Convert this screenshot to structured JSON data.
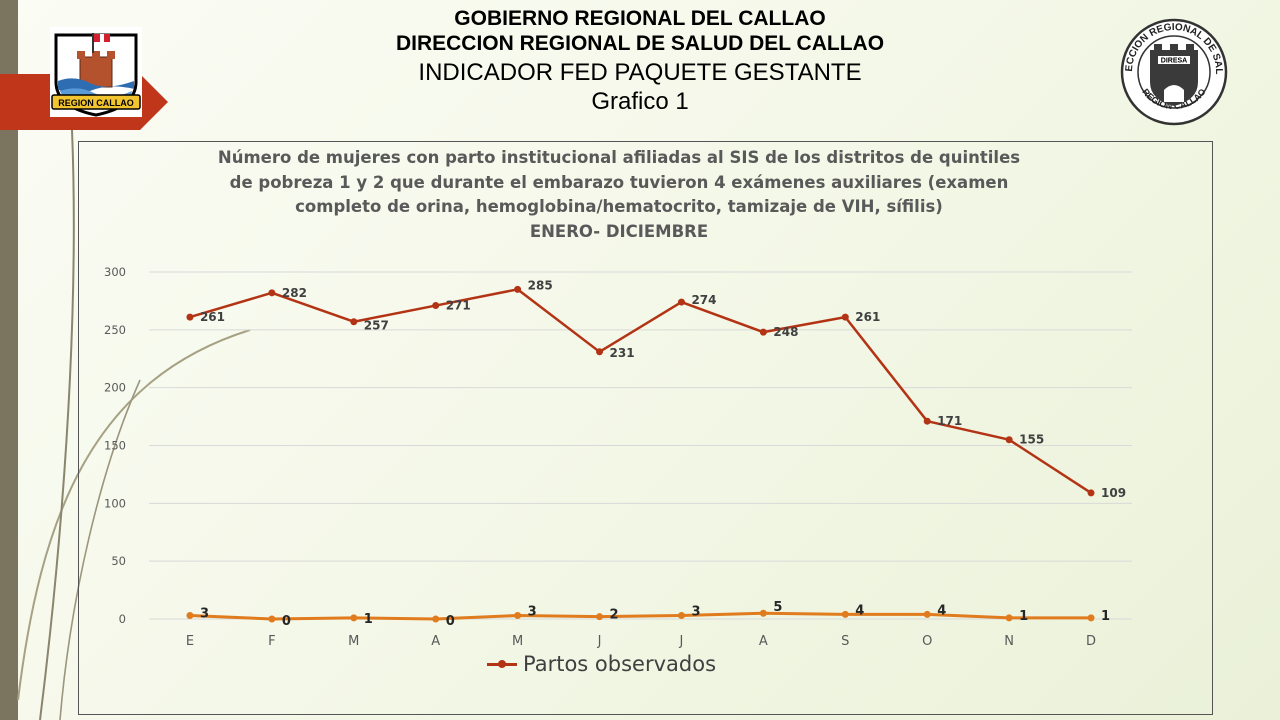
{
  "header": {
    "line1": "GOBIERNO REGIONAL DEL CALLAO",
    "line2": "DIRECCION  REGIONAL DE SALUD  DEL CALLAO",
    "line3": "INDICADOR FED PAQUETE GESTANTE",
    "line4": "Grafico 1"
  },
  "logos": {
    "left_text": "REGION CALLAO",
    "right_text_top": "DIRECCION REGIONAL DE SALUD",
    "right_text_bottom": "REGION CALLAO",
    "right_text_center": "DIRESA"
  },
  "colors": {
    "series_main": "#b33415",
    "series_secondary": "#e07b1e",
    "gridline": "#d9d9d9",
    "accent_bar": "#7b7560",
    "arrow_red": "#c0361b"
  },
  "chart_data": {
    "type": "line",
    "title": "Número de mujeres con parto institucional afiliadas al SIS de los distritos de quintiles de pobreza 1 y 2 que durante el embarazo tuvieron 4 exámenes auxiliares (examen completo de orina, hemoglobina/hematocrito,  tamizaje de VIH, sífilis)",
    "title_lines": [
      "Número de mujeres con parto institucional afiliadas al SIS de los distritos de quintiles",
      "de pobreza 1 y 2 que durante el embarazo tuvieron 4 exámenes auxiliares (examen",
      "completo de orina, hemoglobina/hematocrito,  tamizaje de VIH, sífilis)"
    ],
    "subtitle": "ENERO- DICIEMBRE",
    "categories": [
      "E",
      "F",
      "M",
      "A",
      "M",
      "J",
      "J",
      "A",
      "S",
      "O",
      "N",
      "D"
    ],
    "ylim": [
      0,
      300
    ],
    "yticks": [
      "0",
      "50",
      "100",
      "150",
      "200",
      "250",
      "300"
    ],
    "grid": true,
    "legend_position": "bottom",
    "series": [
      {
        "values": [
          261,
          282,
          257,
          271,
          285,
          231,
          274,
          248,
          261,
          171,
          155,
          109
        ],
        "labels": [
          "261",
          "282",
          "257",
          "271",
          "285",
          "231",
          "274",
          "248",
          "261",
          "171",
          "155",
          "109"
        ]
      },
      {
        "name": "Partos observados",
        "values": [
          3,
          0,
          1,
          0,
          3,
          2,
          3,
          5,
          4,
          4,
          1,
          1
        ],
        "labels": [
          "3",
          "0",
          "1",
          "0",
          "3",
          "2",
          "3",
          "5",
          "4",
          "4",
          "1",
          "1"
        ]
      }
    ]
  }
}
